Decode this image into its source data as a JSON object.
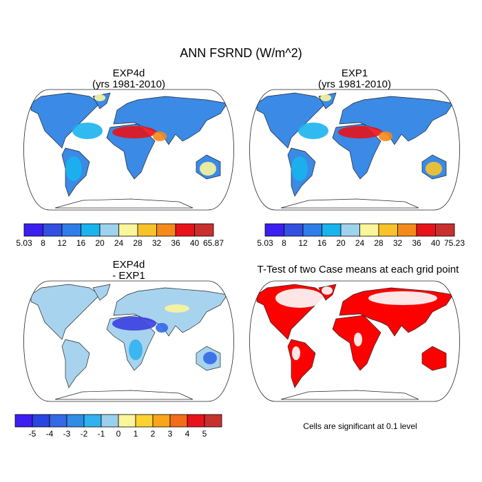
{
  "title": "ANN FSRND (W/m^2)",
  "panels": [
    {
      "title": "EXP4d",
      "subtitle": "(yrs 1981-2010)"
    },
    {
      "title": "EXP1",
      "subtitle": "(yrs 1981-2010)"
    },
    {
      "title": "EXP4d",
      "subtitle": "- EXP1"
    },
    {
      "title": "T-Test of two Case means at each grid point"
    }
  ],
  "colorbars": [
    {
      "colors": [
        "#3b1ff0",
        "#3350e0",
        "#2f7de8",
        "#19b3ee",
        "#9fd2ec",
        "#fbf59b",
        "#f8c32a",
        "#f48a1b",
        "#e8131a",
        "#c8302e"
      ],
      "labels": [
        "5.03",
        "8",
        "12",
        "16",
        "20",
        "24",
        "28",
        "32",
        "36",
        "40",
        "65.87"
      ]
    },
    {
      "colors": [
        "#3b1ff0",
        "#3350e0",
        "#2f7de8",
        "#19b3ee",
        "#9fd2ec",
        "#fbf59b",
        "#f8c32a",
        "#f48a1b",
        "#e8131a",
        "#c8302e"
      ],
      "labels": [
        "5.03",
        "8",
        "12",
        "16",
        "20",
        "24",
        "28",
        "32",
        "36",
        "40",
        "75.23"
      ]
    },
    {
      "colors": [
        "#3e1ef0",
        "#2a45e0",
        "#3468e6",
        "#2f8de8",
        "#30b2ef",
        "#9bd0ec",
        "#fbf59b",
        "#fcd22f",
        "#f8a519",
        "#f36c1a",
        "#e8131a",
        "#c8302e"
      ],
      "labels": [
        "-5",
        "-4",
        "-3",
        "-2",
        "-1",
        "0",
        "1",
        "2",
        "3",
        "4",
        "5"
      ]
    }
  ],
  "note": "Cells are significant at 0.1 level"
}
